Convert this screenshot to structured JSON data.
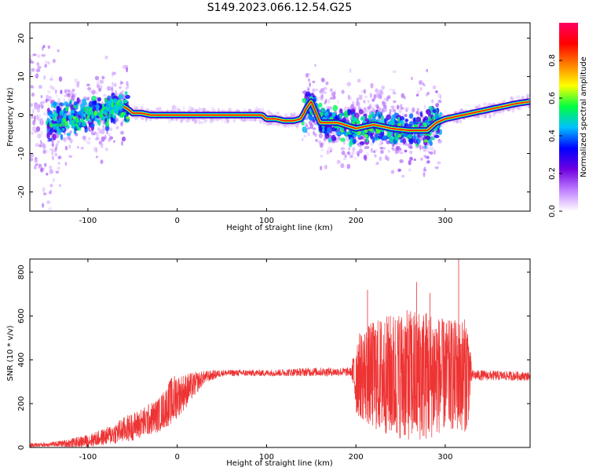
{
  "figure_title": "S149.2023.066.12.54.G25",
  "chart_data": [
    {
      "type": "heatmap",
      "title": "",
      "xlabel": "Height of straight line (km)",
      "ylabel": "Frequency (Hz)",
      "xlim": [
        -165,
        395
      ],
      "ylim": [
        -25,
        24
      ],
      "xticks": [
        -100,
        0,
        100,
        200,
        300
      ],
      "yticks": [
        -20,
        -10,
        0,
        10,
        20
      ],
      "colorbar": {
        "label": "Normalized spectral amplitude",
        "range": [
          0,
          1
        ],
        "ticks": [
          0.0,
          0.2,
          0.4,
          0.6,
          0.8
        ],
        "colors": [
          "#ffffff",
          "#c080ff",
          "#7000e0",
          "#0000ff",
          "#00c0ff",
          "#00ff40",
          "#ffff00",
          "#ff8000",
          "#ff0000",
          "#ff0060"
        ]
      },
      "ridge": {
        "x": [
          -165,
          -150,
          -130,
          -110,
          -90,
          -75,
          -62,
          -55,
          -50,
          -40,
          -30,
          -20,
          0,
          50,
          95,
          100,
          110,
          120,
          130,
          138,
          142,
          145,
          150,
          160,
          180,
          200,
          220,
          240,
          260,
          280,
          290,
          300,
          320,
          340,
          360,
          380,
          395
        ],
        "y": [
          -2.5,
          -2.5,
          -1.0,
          -0.5,
          0.5,
          1.5,
          2.5,
          1.5,
          0.5,
          0.5,
          0.0,
          0.0,
          0.0,
          0.0,
          0.0,
          -1.0,
          -1.0,
          -1.5,
          -1.5,
          -1.0,
          0.5,
          2.0,
          3.5,
          -2.0,
          -2.0,
          -3.5,
          -2.5,
          -3.5,
          -4.0,
          -4.0,
          -2.0,
          -1.0,
          0.0,
          1.0,
          2.0,
          3.0,
          3.5
        ]
      }
    },
    {
      "type": "line",
      "title": "",
      "xlabel": "Height of straight line (km)",
      "ylabel": "SNR (10 * v/v)",
      "xlim": [
        -165,
        395
      ],
      "ylim": [
        0,
        860
      ],
      "xticks": [
        -100,
        0,
        100,
        200,
        300
      ],
      "yticks": [
        0,
        200,
        400,
        600,
        800
      ],
      "color": "#ee3333",
      "envelope": {
        "x": [
          -165,
          -140,
          -120,
          -100,
          -80,
          -60,
          -40,
          -20,
          -5,
          10,
          30,
          50,
          100,
          150,
          195,
          200,
          220,
          240,
          260,
          280,
          300,
          325,
          330,
          395
        ],
        "center": [
          10,
          15,
          20,
          30,
          50,
          80,
          110,
          150,
          220,
          260,
          320,
          340,
          340,
          345,
          345,
          330,
          330,
          330,
          330,
          330,
          330,
          330,
          330,
          325
        ],
        "amplitude": [
          10,
          10,
          20,
          30,
          40,
          60,
          70,
          80,
          110,
          80,
          30,
          15,
          15,
          20,
          20,
          180,
          250,
          280,
          300,
          300,
          250,
          260,
          25,
          20
        ]
      },
      "peaks": [
        {
          "x": 213,
          "y": 720
        },
        {
          "x": 268,
          "y": 755
        },
        {
          "x": 283,
          "y": 705
        },
        {
          "x": 315,
          "y": 860
        }
      ]
    }
  ]
}
